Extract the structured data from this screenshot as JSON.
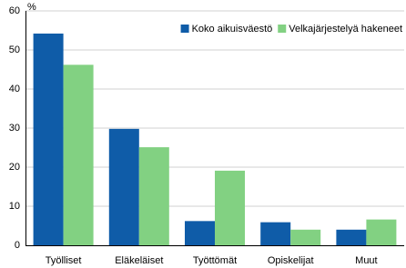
{
  "chart_data": {
    "type": "bar",
    "y_label": "%",
    "categories": [
      "Työlliset",
      "Eläkeläiset",
      "Työttömät",
      "Opiskelijat",
      "Muut"
    ],
    "series": [
      {
        "name": "Koko aikuisväestö",
        "color": "#0f5ca8",
        "values": [
          54.2,
          29.8,
          6.2,
          5.9,
          4.0
        ]
      },
      {
        "name": "Velkajärjestelyä hakeneet",
        "color": "#82d182",
        "values": [
          46.2,
          25.1,
          19.1,
          4.0,
          6.6
        ]
      }
    ],
    "ylim": [
      0,
      60
    ],
    "yticks": [
      0,
      10,
      20,
      30,
      40,
      50,
      60
    ],
    "grid": true,
    "legend": "upper right"
  }
}
